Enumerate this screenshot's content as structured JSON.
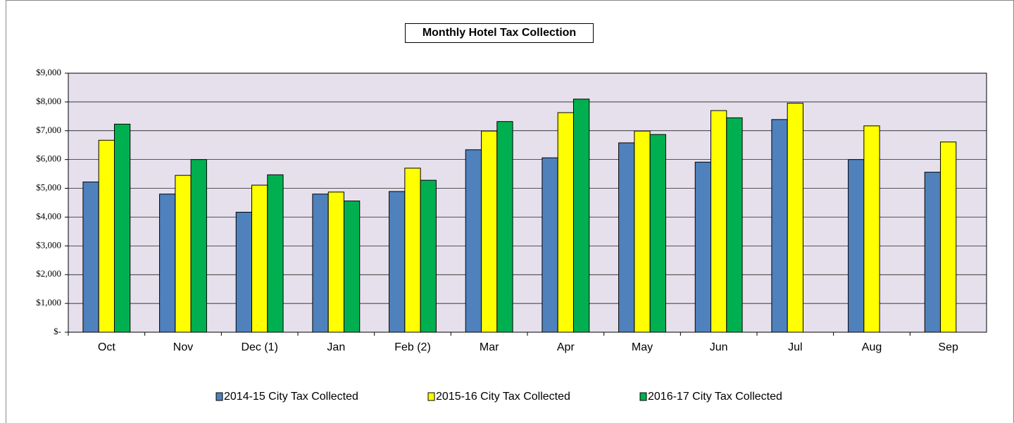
{
  "chart_data": {
    "type": "bar",
    "title": "Monthly Hotel Tax Collection",
    "categories": [
      "Oct",
      "Nov",
      "Dec (1)",
      "Jan",
      "Feb (2)",
      "Mar",
      "Apr",
      "May",
      "Jun",
      "Jul",
      "Aug",
      "Sep"
    ],
    "series": [
      {
        "name": "2014-15 City Tax Collected",
        "color": "#4f81bd",
        "values": [
          5220,
          4800,
          4170,
          4800,
          4890,
          6340,
          6060,
          6580,
          5910,
          7390,
          6000,
          5560
        ]
      },
      {
        "name": "2015-16 City Tax Collected",
        "color": "#ffff00",
        "values": [
          6670,
          5450,
          5110,
          4870,
          5700,
          6990,
          7630,
          6990,
          7700,
          7960,
          7170,
          6610
        ]
      },
      {
        "name": "2016-17 City Tax Collected",
        "color": "#00b050",
        "values": [
          7230,
          6000,
          5470,
          4560,
          5280,
          7320,
          8100,
          6870,
          7450,
          null,
          null,
          null
        ]
      }
    ],
    "ylim": [
      0,
      9000
    ],
    "yticks": [
      {
        "value": 0,
        "label": "$-"
      },
      {
        "value": 1000,
        "label": "$1,000"
      },
      {
        "value": 2000,
        "label": "$2,000"
      },
      {
        "value": 3000,
        "label": "$3,000"
      },
      {
        "value": 4000,
        "label": "$4,000"
      },
      {
        "value": 5000,
        "label": "$5,000"
      },
      {
        "value": 6000,
        "label": "$6,000"
      },
      {
        "value": 7000,
        "label": "$7,000"
      },
      {
        "value": 8000,
        "label": "$8,000"
      },
      {
        "value": 9000,
        "label": "$9,000"
      }
    ],
    "grid": true
  }
}
